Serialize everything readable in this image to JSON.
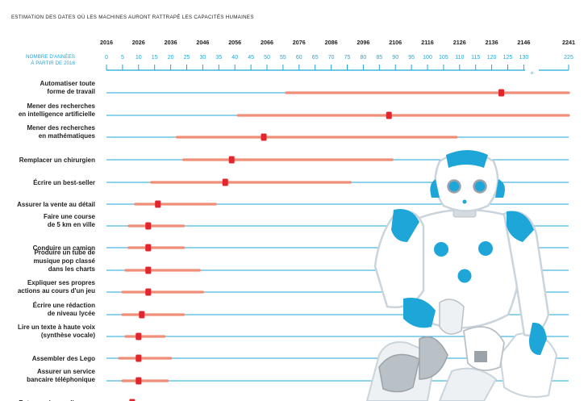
{
  "chart_data": {
    "type": "range",
    "title": "ESTIMATION DES DATES OÙ LES MACHINES AURONT RATTRAPÉ LES CAPACITÉS HUMAINES",
    "year_axis": [
      "2016",
      "2026",
      "2036",
      "2046",
      "2056",
      "2066",
      "2076",
      "2086",
      "2096",
      "2106",
      "2116",
      "2126",
      "2136",
      "2146",
      "2241"
    ],
    "years_axis_label": [
      "NOMBRE D'ANNÉES",
      "À PARTIR DE 2016"
    ],
    "years_ticks": [
      "0",
      "5",
      "10",
      "15",
      "20",
      "25",
      "30",
      "35",
      "40",
      "45",
      "50",
      "55",
      "60",
      "65",
      "70",
      "75",
      "80",
      "85",
      "90",
      "95",
      "100",
      "105",
      "110",
      "115",
      "120",
      "125",
      "130",
      "225"
    ],
    "axis_break": "≈",
    "colors": {
      "axis": "#1fa6d8",
      "range": "#ef8e78",
      "median": "#e3262d"
    },
    "tasks": [
      {
        "label": [
          "Automatiser toute",
          "forme de travail"
        ],
        "low": 56,
        "median": 123,
        "high": 225
      },
      {
        "label": [
          "Mener des recherches",
          "en intelligence artificielle"
        ],
        "low": 41,
        "median": 88,
        "high": 225
      },
      {
        "label": [
          "Mener des recherches",
          "en mathématiques"
        ],
        "low": 22,
        "median": 49,
        "high": 109
      },
      {
        "label": [
          "Remplacer un chirurgien"
        ],
        "low": 24,
        "median": 39,
        "high": 89
      },
      {
        "label": [
          "Écrire un best-seller"
        ],
        "low": 14,
        "median": 37,
        "high": 76
      },
      {
        "label": [
          "Assurer la vente au détail"
        ],
        "low": 9,
        "median": 16,
        "high": 34
      },
      {
        "label": [
          "Faire une course",
          "de 5 km en ville"
        ],
        "low": 7,
        "median": 13,
        "high": 24
      },
      {
        "label": [
          "Conduire un camion"
        ],
        "low": 7,
        "median": 13,
        "high": 24
      },
      {
        "label": [
          "Produire un tube de",
          "musique pop classé",
          "dans les charts"
        ],
        "low": 6,
        "median": 13,
        "high": 29
      },
      {
        "label": [
          "Expliquer ses propres",
          "actions au cours d'un jeu"
        ],
        "low": 5,
        "median": 13,
        "high": 30
      },
      {
        "label": [
          "Écrire une rédaction",
          "de niveau lycée"
        ],
        "low": 5,
        "median": 11,
        "high": 24
      },
      {
        "label": [
          "Lire un texte à haute voix",
          "(synthèse vocale)"
        ],
        "low": 6,
        "median": 10,
        "high": 18
      },
      {
        "label": [
          "Assembler des Lego"
        ],
        "low": 4,
        "median": 10,
        "high": 20
      },
      {
        "label": [
          "Assurer un service",
          "bancaire téléphonique"
        ],
        "low": 5,
        "median": 10,
        "high": 19
      },
      {
        "label": [
          "Retranscrire un discours"
        ],
        "low": 4,
        "median": 8,
        "high": 14
      }
    ]
  },
  "illustration": {
    "name": "humanoid-robot",
    "colors": {
      "accent": "#1fa6d8",
      "body": "#ffffff",
      "outline": "#c9d4dc",
      "grey": "#b9c0c6"
    }
  }
}
